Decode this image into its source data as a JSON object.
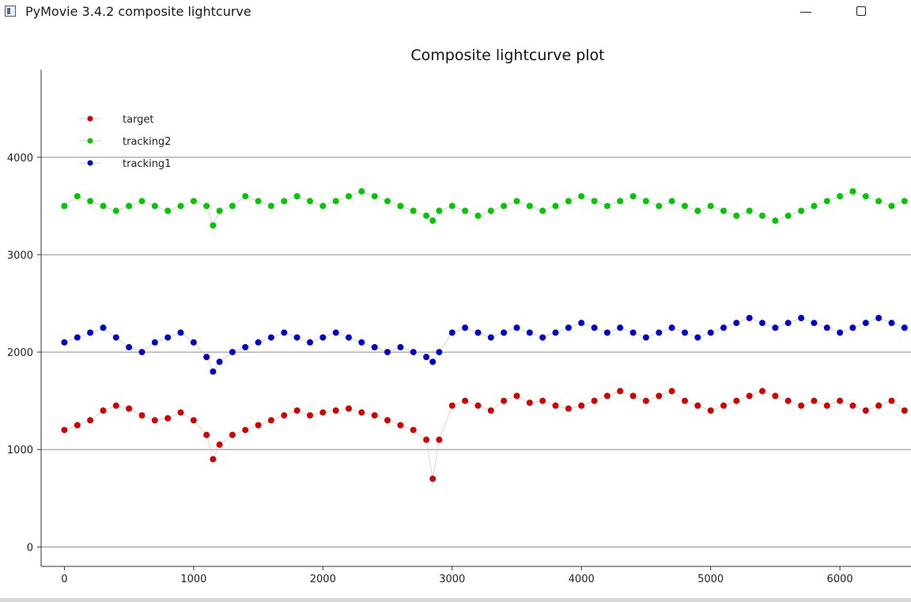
{
  "window": {
    "title": "PyMovie 3.4.2 composite lightcurve",
    "icon": "app-icon",
    "buttons": {
      "minimize": "minimize-icon",
      "maximize": "maximize-icon"
    }
  },
  "chart_data": {
    "type": "scatter",
    "title": "Composite lightcurve plot",
    "xlabel": "",
    "ylabel": "",
    "xlim": [
      -180,
      6550
    ],
    "ylim": [
      -200,
      4900
    ],
    "xticks": [
      0,
      1000,
      2000,
      3000,
      4000,
      5000,
      6000
    ],
    "yticks": [
      0,
      1000,
      2000,
      3000,
      4000
    ],
    "grid": "horizontal",
    "legend_position": "top-left",
    "connecting_lines_color": "#d4d4d4",
    "series": [
      {
        "name": "target",
        "color": "#d40000",
        "x": [
          0,
          100,
          200,
          300,
          400,
          500,
          600,
          700,
          800,
          900,
          1000,
          1100,
          1150,
          1200,
          1300,
          1400,
          1500,
          1600,
          1700,
          1800,
          1900,
          2000,
          2100,
          2200,
          2300,
          2400,
          2500,
          2600,
          2700,
          2800,
          2850,
          2900,
          3000,
          3100,
          3200,
          3300,
          3400,
          3500,
          3600,
          3700,
          3800,
          3900,
          4000,
          4100,
          4200,
          4300,
          4400,
          4500,
          4600,
          4700,
          4800,
          4900,
          5000,
          5100,
          5200,
          5300,
          5400,
          5500,
          5600,
          5700,
          5800,
          5900,
          6000,
          6100,
          6200,
          6300,
          6400,
          6500
        ],
        "y": [
          1200,
          1250,
          1300,
          1400,
          1450,
          1420,
          1350,
          1300,
          1320,
          1380,
          1300,
          1150,
          900,
          1050,
          1150,
          1200,
          1250,
          1300,
          1350,
          1400,
          1350,
          1380,
          1400,
          1420,
          1380,
          1350,
          1300,
          1250,
          1200,
          1100,
          700,
          1100,
          1450,
          1500,
          1450,
          1400,
          1500,
          1550,
          1480,
          1500,
          1450,
          1420,
          1450,
          1500,
          1550,
          1600,
          1550,
          1500,
          1550,
          1600,
          1500,
          1450,
          1400,
          1450,
          1500,
          1550,
          1600,
          1550,
          1500,
          1450,
          1500,
          1450,
          1500,
          1450,
          1400,
          1450,
          1500,
          1400
        ]
      },
      {
        "name": "tracking2",
        "color": "#00c800",
        "x": [
          0,
          100,
          200,
          300,
          400,
          500,
          600,
          700,
          800,
          900,
          1000,
          1100,
          1150,
          1200,
          1300,
          1400,
          1500,
          1600,
          1700,
          1800,
          1900,
          2000,
          2100,
          2200,
          2300,
          2400,
          2500,
          2600,
          2700,
          2800,
          2850,
          2900,
          3000,
          3100,
          3200,
          3300,
          3400,
          3500,
          3600,
          3700,
          3800,
          3900,
          4000,
          4100,
          4200,
          4300,
          4400,
          4500,
          4600,
          4700,
          4800,
          4900,
          5000,
          5100,
          5200,
          5300,
          5400,
          5500,
          5600,
          5700,
          5800,
          5900,
          6000,
          6100,
          6200,
          6300,
          6400,
          6500
        ],
        "y": [
          3500,
          3600,
          3550,
          3500,
          3450,
          3500,
          3550,
          3500,
          3450,
          3500,
          3550,
          3500,
          3300,
          3450,
          3500,
          3600,
          3550,
          3500,
          3550,
          3600,
          3550,
          3500,
          3550,
          3600,
          3650,
          3600,
          3550,
          3500,
          3450,
          3400,
          3350,
          3450,
          3500,
          3450,
          3400,
          3450,
          3500,
          3550,
          3500,
          3450,
          3500,
          3550,
          3600,
          3550,
          3500,
          3550,
          3600,
          3550,
          3500,
          3550,
          3500,
          3450,
          3500,
          3450,
          3400,
          3450,
          3400,
          3350,
          3400,
          3450,
          3500,
          3550,
          3600,
          3650,
          3600,
          3550,
          3500,
          3550
        ]
      },
      {
        "name": "tracking1",
        "color": "#0000cc",
        "x": [
          0,
          100,
          200,
          300,
          400,
          500,
          600,
          700,
          800,
          900,
          1000,
          1100,
          1150,
          1200,
          1300,
          1400,
          1500,
          1600,
          1700,
          1800,
          1900,
          2000,
          2100,
          2200,
          2300,
          2400,
          2500,
          2600,
          2700,
          2800,
          2850,
          2900,
          3000,
          3100,
          3200,
          3300,
          3400,
          3500,
          3600,
          3700,
          3800,
          3900,
          4000,
          4100,
          4200,
          4300,
          4400,
          4500,
          4600,
          4700,
          4800,
          4900,
          5000,
          5100,
          5200,
          5300,
          5400,
          5500,
          5600,
          5700,
          5800,
          5900,
          6000,
          6100,
          6200,
          6300,
          6400,
          6500
        ],
        "y": [
          2100,
          2150,
          2200,
          2250,
          2150,
          2050,
          2000,
          2100,
          2150,
          2200,
          2100,
          1950,
          1800,
          1900,
          2000,
          2050,
          2100,
          2150,
          2200,
          2150,
          2100,
          2150,
          2200,
          2150,
          2100,
          2050,
          2000,
          2050,
          2000,
          1950,
          1900,
          2000,
          2200,
          2250,
          2200,
          2150,
          2200,
          2250,
          2200,
          2150,
          2200,
          2250,
          2300,
          2250,
          2200,
          2250,
          2200,
          2150,
          2200,
          2250,
          2200,
          2150,
          2200,
          2250,
          2300,
          2350,
          2300,
          2250,
          2300,
          2350,
          2300,
          2250,
          2200,
          2250,
          2300,
          2350,
          2300,
          2250
        ]
      }
    ]
  }
}
